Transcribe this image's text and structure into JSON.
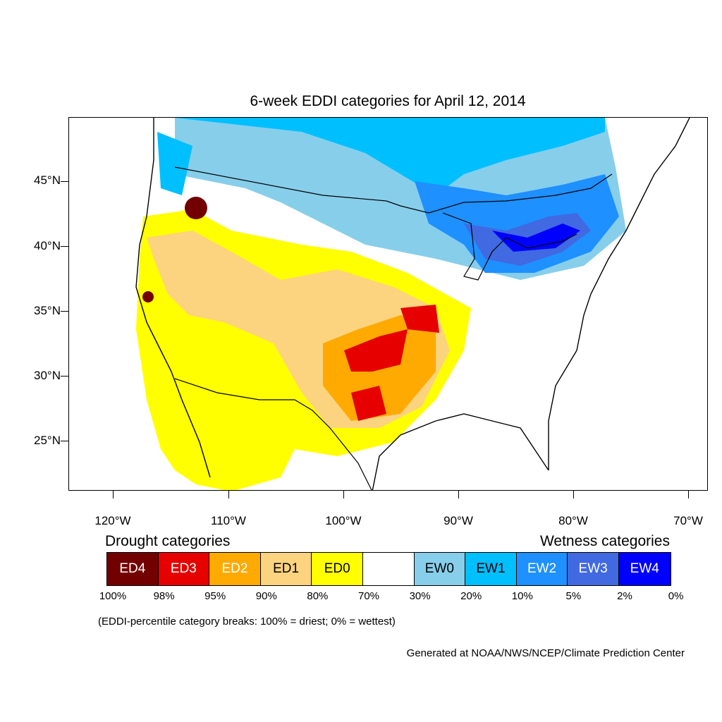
{
  "title": "6-week EDDI categories for April 12, 2014",
  "latitude_labels": [
    "45°N",
    "40°N",
    "35°N",
    "30°N",
    "25°N"
  ],
  "longitude_labels": [
    "120°W",
    "110°W",
    "100°W",
    "90°W",
    "80°W",
    "70°W"
  ],
  "legend": {
    "drought_heading": "Drought categories",
    "wetness_heading": "Wetness categories",
    "categories": [
      {
        "label": "ED4",
        "color": "#730000",
        "text_color": "#ffffff"
      },
      {
        "label": "ED3",
        "color": "#e60000",
        "text_color": "#ffffff"
      },
      {
        "label": "ED2",
        "color": "#ffaa00",
        "text_color": "#ffffff"
      },
      {
        "label": "ED1",
        "color": "#fcd37f",
        "text_color": "#000000"
      },
      {
        "label": "ED0",
        "color": "#ffff00",
        "text_color": "#000000"
      },
      {
        "label": "",
        "color": "#ffffff",
        "text_color": "#000000"
      },
      {
        "label": "EW0",
        "color": "#87ceeb",
        "text_color": "#000000"
      },
      {
        "label": "EW1",
        "color": "#00bfff",
        "text_color": "#000000"
      },
      {
        "label": "EW2",
        "color": "#1e90ff",
        "text_color": "#ffffff"
      },
      {
        "label": "EW3",
        "color": "#4169e1",
        "text_color": "#ffffff"
      },
      {
        "label": "EW4",
        "color": "#0000ff",
        "text_color": "#ffffff"
      }
    ],
    "breaks": [
      "100%",
      "98%",
      "95%",
      "90%",
      "80%",
      "70%",
      "30%",
      "20%",
      "10%",
      "5%",
      "2%",
      "0%"
    ]
  },
  "footnote": "(EDDI-percentile category breaks: 100% = driest; 0% = wettest)",
  "credit": "Generated at NOAA/NWS/NCEP/Climate Prediction Center"
}
